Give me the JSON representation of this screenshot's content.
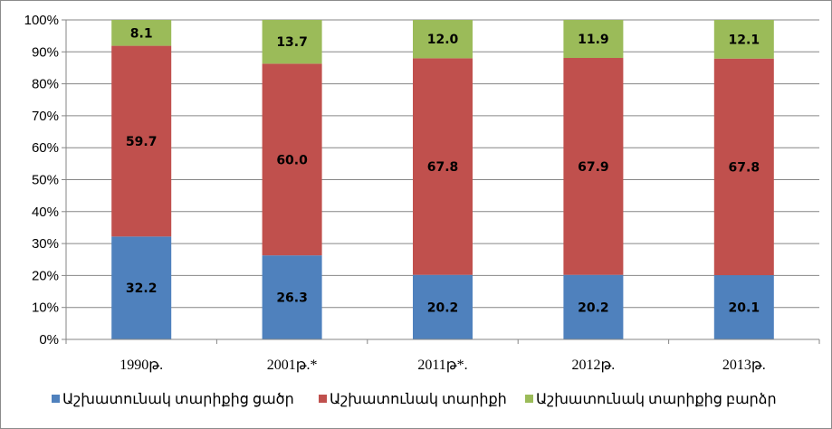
{
  "chart_data": {
    "type": "bar",
    "stacked": true,
    "percent": true,
    "categories": [
      "1990թ.",
      "2001թ.*",
      "2011թ*.",
      "2012թ.",
      "2013թ."
    ],
    "series": [
      {
        "name": "Աշխատունակ տարիքից ցածր",
        "color": "#4f81bd",
        "values": [
          32.2,
          26.3,
          20.2,
          20.2,
          20.1
        ]
      },
      {
        "name": "Աշխատունակ տարիքի",
        "color": "#c0504d",
        "values": [
          59.7,
          60.0,
          67.8,
          67.9,
          67.8
        ]
      },
      {
        "name": "Աշխատունակ տարիքից բարձր",
        "color": "#9bbb59",
        "values": [
          8.1,
          13.7,
          12.0,
          11.9,
          12.1
        ]
      }
    ],
    "ylim": [
      0,
      100
    ],
    "yticks": [
      "0%",
      "10%",
      "20%",
      "30%",
      "40%",
      "50%",
      "60%",
      "70%",
      "80%",
      "90%",
      "100%"
    ],
    "grid": true,
    "legend": "bottom",
    "axis_color": "#868686",
    "grid_color": "#868686"
  }
}
